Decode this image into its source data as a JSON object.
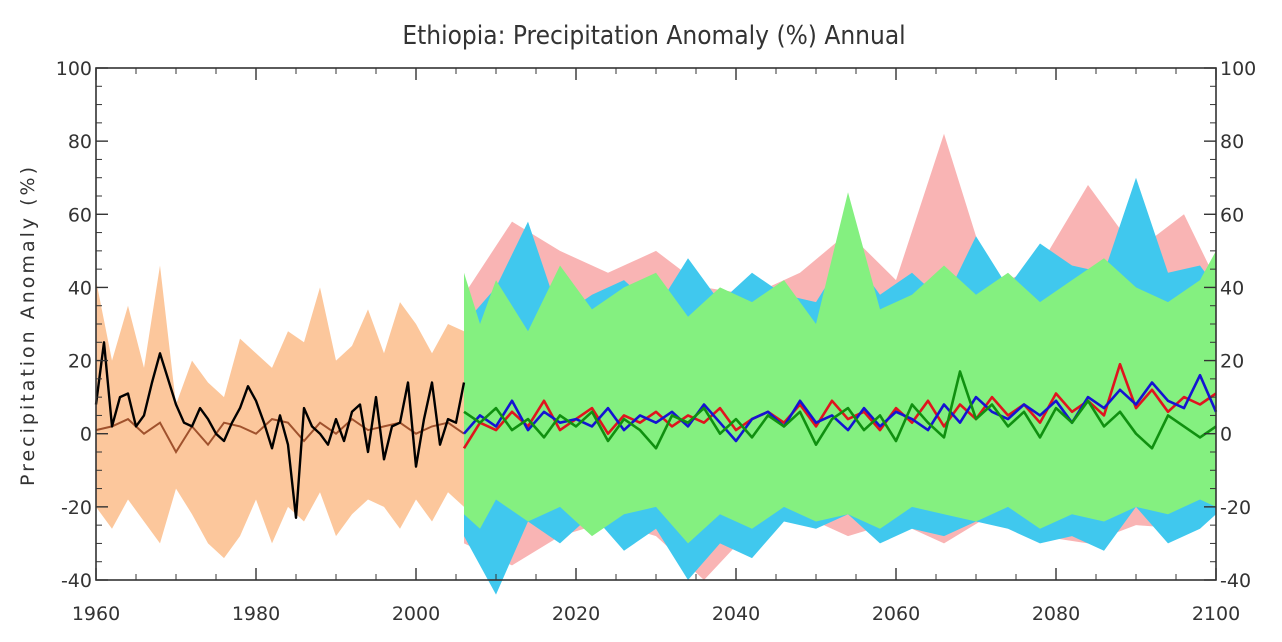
{
  "chart_data": {
    "type": "area",
    "title": "Ethiopia: Precipitation Anomaly (%) Annual",
    "xlabel": "",
    "ylabel": "Precipitation Anomaly (%)",
    "xlim": [
      1960,
      2100
    ],
    "ylim": [
      -40,
      100
    ],
    "x_ticks": [
      1960,
      1980,
      2000,
      2020,
      2040,
      2060,
      2080,
      2100
    ],
    "y_ticks": [
      -40,
      -20,
      0,
      20,
      40,
      60,
      80,
      100
    ],
    "grid": false,
    "legend": "none",
    "colors": {
      "observed": "#000000",
      "historical_model_median": "#a0522d",
      "historical_model_range": "#fcc79c",
      "scenario_a": "#e0141e",
      "scenario_b": "#1414d2",
      "scenario_c": "#109010",
      "range_a": "#f9b4b4",
      "range_b": "#40c8ee",
      "range_c": "#84f080"
    },
    "historical_years": [
      1960,
      2006
    ],
    "observed": {
      "x": [
        1960,
        1961,
        1962,
        1963,
        1964,
        1965,
        1966,
        1967,
        1968,
        1969,
        1970,
        1971,
        1972,
        1973,
        1974,
        1975,
        1976,
        1977,
        1978,
        1979,
        1980,
        1981,
        1982,
        1983,
        1984,
        1985,
        1986,
        1987,
        1988,
        1989,
        1990,
        1991,
        1992,
        1993,
        1994,
        1995,
        1996,
        1997,
        1998,
        1999,
        2000,
        2001,
        2002,
        2003,
        2004,
        2005,
        2006
      ],
      "values": [
        8,
        25,
        2,
        10,
        11,
        2,
        5,
        14,
        22,
        15,
        8,
        3,
        2,
        7,
        4,
        0,
        -2,
        3,
        7,
        13,
        9,
        3,
        -4,
        5,
        -3,
        -23,
        7,
        2,
        0,
        -3,
        4,
        -2,
        6,
        8,
        -5,
        10,
        -7,
        2,
        3,
        14,
        -9,
        4,
        14,
        -3,
        4,
        3,
        14
      ]
    },
    "historical_median": {
      "x": [
        1960,
        1962,
        1964,
        1966,
        1968,
        1970,
        1972,
        1974,
        1976,
        1978,
        1980,
        1982,
        1984,
        1986,
        1988,
        1990,
        1992,
        1994,
        1996,
        1998,
        2000,
        2002,
        2004,
        2006
      ],
      "values": [
        1,
        2,
        4,
        0,
        3,
        -5,
        2,
        -3,
        3,
        2,
        0,
        4,
        3,
        -2,
        3,
        0,
        4,
        1,
        2,
        3,
        0,
        2,
        3,
        0
      ]
    },
    "historical_range": {
      "x": [
        1960,
        1962,
        1964,
        1966,
        1968,
        1970,
        1972,
        1974,
        1976,
        1978,
        1980,
        1982,
        1984,
        1986,
        1988,
        1990,
        1992,
        1994,
        1996,
        1998,
        2000,
        2002,
        2004,
        2006
      ],
      "upper": [
        42,
        20,
        35,
        18,
        46,
        8,
        20,
        14,
        10,
        26,
        22,
        18,
        28,
        25,
        40,
        20,
        24,
        34,
        22,
        36,
        30,
        22,
        30,
        28
      ],
      "lower": [
        -20,
        -26,
        -18,
        -24,
        -30,
        -15,
        -22,
        -30,
        -34,
        -28,
        -18,
        -30,
        -20,
        -24,
        -16,
        -28,
        -22,
        -18,
        -20,
        -26,
        -18,
        -24,
        -16,
        -20
      ]
    },
    "projection_ranges": [
      {
        "x": [
          2006,
          2012,
          2018,
          2024,
          2030,
          2036,
          2042,
          2048,
          2054,
          2060,
          2066,
          2072,
          2078,
          2084,
          2090,
          2096,
          2100
        ],
        "upper": [
          38,
          58,
          50,
          44,
          50,
          40,
          38,
          44,
          55,
          42,
          82,
          40,
          46,
          68,
          50,
          60,
          42
        ],
        "lower": [
          -30,
          -36,
          -28,
          -24,
          -28,
          -40,
          -26,
          -22,
          -28,
          -24,
          -30,
          -22,
          -28,
          -30,
          -25,
          -26,
          -20
        ]
      },
      {
        "x": [
          2006,
          2010,
          2014,
          2018,
          2022,
          2026,
          2030,
          2034,
          2038,
          2042,
          2046,
          2050,
          2054,
          2058,
          2062,
          2066,
          2070,
          2074,
          2078,
          2082,
          2086,
          2090,
          2094,
          2098,
          2100
        ],
        "upper": [
          30,
          40,
          58,
          32,
          38,
          42,
          34,
          48,
          36,
          44,
          38,
          36,
          50,
          38,
          44,
          36,
          54,
          40,
          52,
          46,
          44,
          70,
          44,
          46,
          40
        ],
        "lower": [
          -28,
          -44,
          -24,
          -30,
          -22,
          -32,
          -26,
          -40,
          -30,
          -34,
          -24,
          -26,
          -22,
          -30,
          -26,
          -28,
          -24,
          -26,
          -30,
          -28,
          -32,
          -20,
          -30,
          -26,
          -22
        ]
      },
      {
        "x": [
          2006,
          2008,
          2010,
          2014,
          2018,
          2022,
          2026,
          2030,
          2034,
          2038,
          2042,
          2046,
          2050,
          2054,
          2058,
          2062,
          2066,
          2070,
          2074,
          2078,
          2082,
          2086,
          2090,
          2094,
          2098,
          2100
        ],
        "upper": [
          44,
          30,
          42,
          28,
          46,
          34,
          40,
          44,
          32,
          40,
          36,
          42,
          30,
          66,
          34,
          38,
          46,
          38,
          44,
          36,
          42,
          48,
          40,
          36,
          42,
          50
        ],
        "lower": [
          -22,
          -26,
          -18,
          -24,
          -20,
          -28,
          -22,
          -20,
          -30,
          -22,
          -26,
          -20,
          -24,
          -22,
          -26,
          -20,
          -22,
          -24,
          -20,
          -26,
          -22,
          -24,
          -20,
          -22,
          -18,
          -20
        ]
      }
    ],
    "series": [
      {
        "x": [
          2006,
          2008,
          2010,
          2012,
          2014,
          2016,
          2018,
          2020,
          2022,
          2024,
          2026,
          2028,
          2030,
          2032,
          2034,
          2036,
          2038,
          2040,
          2042,
          2044,
          2046,
          2048,
          2050,
          2052,
          2054,
          2056,
          2058,
          2060,
          2062,
          2064,
          2066,
          2068,
          2070,
          2072,
          2074,
          2076,
          2078,
          2080,
          2082,
          2084,
          2086,
          2088,
          2090,
          2092,
          2094,
          2096,
          2098,
          2100
        ],
        "values": [
          -4,
          3,
          1,
          6,
          2,
          9,
          1,
          4,
          7,
          0,
          5,
          3,
          6,
          2,
          5,
          3,
          7,
          1,
          4,
          6,
          3,
          8,
          2,
          9,
          4,
          6,
          1,
          7,
          3,
          9,
          2,
          8,
          4,
          10,
          5,
          8,
          3,
          11,
          6,
          9,
          5,
          19,
          7,
          12,
          6,
          10,
          8,
          11
        ]
      },
      {
        "x": [
          2006,
          2008,
          2010,
          2012,
          2014,
          2016,
          2018,
          2020,
          2022,
          2024,
          2026,
          2028,
          2030,
          2032,
          2034,
          2036,
          2038,
          2040,
          2042,
          2044,
          2046,
          2048,
          2050,
          2052,
          2054,
          2056,
          2058,
          2060,
          2062,
          2064,
          2066,
          2068,
          2070,
          2072,
          2074,
          2076,
          2078,
          2080,
          2082,
          2084,
          2086,
          2088,
          2090,
          2092,
          2094,
          2096,
          2098,
          2100
        ],
        "values": [
          0,
          5,
          2,
          9,
          1,
          6,
          3,
          4,
          2,
          7,
          1,
          5,
          3,
          6,
          2,
          8,
          3,
          -2,
          4,
          6,
          2,
          9,
          3,
          5,
          1,
          7,
          2,
          6,
          4,
          1,
          8,
          3,
          10,
          6,
          4,
          8,
          5,
          9,
          3,
          10,
          7,
          12,
          8,
          14,
          9,
          7,
          16,
          6
        ]
      },
      {
        "x": [
          2006,
          2008,
          2010,
          2012,
          2014,
          2016,
          2018,
          2020,
          2022,
          2024,
          2026,
          2028,
          2030,
          2032,
          2034,
          2036,
          2038,
          2040,
          2042,
          2044,
          2046,
          2048,
          2050,
          2052,
          2054,
          2056,
          2058,
          2060,
          2062,
          2064,
          2066,
          2068,
          2070,
          2072,
          2074,
          2076,
          2078,
          2080,
          2082,
          2084,
          2086,
          2088,
          2090,
          2092,
          2094,
          2096,
          2098,
          2100
        ],
        "values": [
          6,
          3,
          7,
          1,
          4,
          -1,
          5,
          2,
          6,
          -2,
          4,
          1,
          -4,
          5,
          3,
          7,
          0,
          4,
          -1,
          5,
          2,
          6,
          -3,
          4,
          7,
          1,
          5,
          -2,
          8,
          3,
          -1,
          17,
          4,
          8,
          2,
          6,
          -1,
          7,
          3,
          9,
          2,
          6,
          0,
          -4,
          5,
          2,
          -1,
          2
        ]
      }
    ]
  }
}
